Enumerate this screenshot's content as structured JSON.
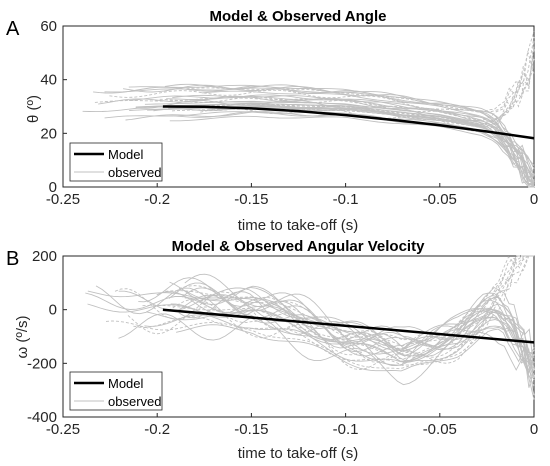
{
  "chart_data": [
    {
      "type": "line",
      "panel_label": "A",
      "title": "Model & Observed Angle",
      "xlabel": "time to take-off (s)",
      "ylabel": "θ (º)",
      "xlim": [
        -0.25,
        0
      ],
      "ylim": [
        0,
        60
      ],
      "xticks": [
        "-0.25",
        "-0.2",
        "-0.15",
        "-0.1",
        "-0.05",
        "0"
      ],
      "yticks": [
        "0",
        "20",
        "40",
        "60"
      ],
      "legend": {
        "position": "bottom-left",
        "entries": [
          "Model",
          "observed"
        ]
      },
      "colors": {
        "model": "#000000",
        "observed": "#c0c0c0"
      },
      "series": [
        {
          "name": "Model",
          "x": [
            -0.197,
            -0.175,
            -0.15,
            -0.125,
            -0.1,
            -0.075,
            -0.05,
            -0.025,
            0
          ],
          "values": [
            30.0,
            29.9,
            29.3,
            28.3,
            26.8,
            25.0,
            23.0,
            20.7,
            18.2
          ]
        },
        {
          "name": "observed",
          "x": [
            -0.24,
            -0.2,
            -0.15,
            -0.1,
            -0.05,
            -0.02,
            0
          ],
          "values": [
            30,
            31,
            32,
            31,
            27,
            23,
            18
          ]
        }
      ]
    },
    {
      "type": "line",
      "panel_label": "B",
      "title": "Model & Observed Angular Velocity",
      "xlabel": "time to take-off (s)",
      "ylabel": "ω (º/s)",
      "xlim": [
        -0.25,
        0
      ],
      "ylim": [
        -400,
        200
      ],
      "xticks": [
        "-0.25",
        "-0.2",
        "-0.15",
        "-0.1",
        "-0.05",
        "0"
      ],
      "yticks": [
        "-400",
        "-200",
        "0",
        "200"
      ],
      "legend": {
        "position": "bottom-left",
        "entries": [
          "Model",
          "observed"
        ]
      },
      "colors": {
        "model": "#000000",
        "observed": "#c0c0c0"
      },
      "series": [
        {
          "name": "Model",
          "x": [
            -0.197,
            0
          ],
          "values": [
            0,
            -122
          ]
        },
        {
          "name": "observed",
          "x": [
            -0.24,
            -0.2,
            -0.15,
            -0.1,
            -0.07,
            -0.04,
            -0.02,
            0
          ],
          "values": [
            20,
            10,
            0,
            -120,
            -180,
            -100,
            0,
            0
          ]
        }
      ]
    }
  ]
}
